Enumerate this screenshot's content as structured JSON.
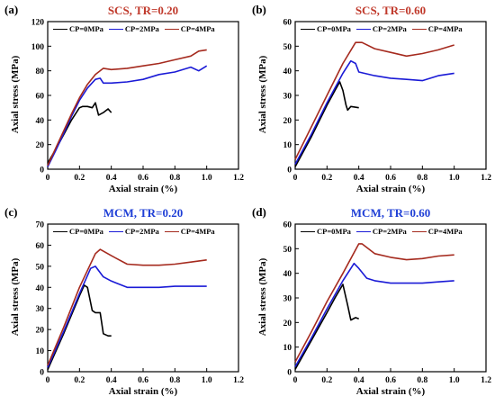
{
  "colors": {
    "cp0": "#000000",
    "cp2": "#1a1ad6",
    "cp4": "#a52a1e",
    "title_scs": "#c0392b",
    "title_mcm": "#1f3fd6"
  },
  "chart_data": [
    {
      "type": "line",
      "panel_letter": "(a)",
      "title": "SCS, TR=0.20",
      "title_color_key": "title_scs",
      "xlabel": "Axial strain (%)",
      "ylabel": "Axial stress (MPa)",
      "xlim": [
        0,
        1.2
      ],
      "ylim": [
        0,
        120
      ],
      "xticks": [
        0.0,
        0.2,
        0.4,
        0.6,
        0.8,
        1.0,
        1.2
      ],
      "xtick_labels": [
        "0",
        "0.2",
        "0.4",
        "0.6",
        "0.8",
        "1.0",
        "1.2"
      ],
      "yticks": [
        0,
        20,
        40,
        60,
        80,
        100,
        120
      ],
      "ytick_labels": [
        "0",
        "20",
        "40",
        "60",
        "80",
        "100",
        "120"
      ],
      "legend_position": "top",
      "series": [
        {
          "name": "CP=0MPa",
          "color_key": "cp0",
          "x": [
            0,
            0.05,
            0.1,
            0.15,
            0.2,
            0.22,
            0.25,
            0.28,
            0.3,
            0.32,
            0.35,
            0.38,
            0.4
          ],
          "y": [
            5,
            16,
            28,
            40,
            50,
            51,
            51,
            50,
            54,
            44,
            46,
            49,
            46
          ]
        },
        {
          "name": "CP=2MPa",
          "color_key": "cp2",
          "x": [
            0,
            0.05,
            0.1,
            0.15,
            0.2,
            0.25,
            0.3,
            0.33,
            0.35,
            0.4,
            0.5,
            0.6,
            0.7,
            0.8,
            0.9,
            0.95,
            1.0
          ],
          "y": [
            2,
            15,
            29,
            43,
            56,
            66,
            73,
            74,
            70,
            70,
            71,
            73,
            77,
            79,
            83,
            80,
            84
          ]
        },
        {
          "name": "CP=4MPa",
          "color_key": "cp4",
          "x": [
            0,
            0.05,
            0.1,
            0.15,
            0.2,
            0.25,
            0.3,
            0.35,
            0.4,
            0.5,
            0.6,
            0.7,
            0.8,
            0.9,
            0.95,
            1.0
          ],
          "y": [
            3,
            17,
            31,
            45,
            58,
            69,
            77,
            82,
            81,
            82,
            84,
            86,
            89,
            92,
            96,
            97
          ]
        }
      ]
    },
    {
      "type": "line",
      "panel_letter": "(b)",
      "title": "SCS, TR=0.60",
      "title_color_key": "title_scs",
      "xlabel": "Axial strain (%)",
      "ylabel": "Axial stress (MPa)",
      "xlim": [
        0,
        1.2
      ],
      "ylim": [
        0,
        60
      ],
      "xticks": [
        0.0,
        0.2,
        0.4,
        0.6,
        0.8,
        1.0,
        1.2
      ],
      "xtick_labels": [
        "0",
        "0.2",
        "0.4",
        "0.6",
        "0.8",
        "1.0",
        "1.2"
      ],
      "yticks": [
        0,
        10,
        20,
        30,
        40,
        50,
        60
      ],
      "ytick_labels": [
        "0",
        "10",
        "20",
        "30",
        "40",
        "50",
        "60"
      ],
      "legend_position": "top",
      "series": [
        {
          "name": "CP=0MPa",
          "color_key": "cp0",
          "x": [
            0,
            0.1,
            0.2,
            0.25,
            0.28,
            0.3,
            0.32,
            0.33,
            0.35,
            0.4
          ],
          "y": [
            1,
            13,
            26,
            32,
            35.5,
            32,
            26,
            24,
            25.5,
            25
          ]
        },
        {
          "name": "CP=2MPa",
          "color_key": "cp2",
          "x": [
            0,
            0.1,
            0.2,
            0.3,
            0.35,
            0.38,
            0.4,
            0.5,
            0.6,
            0.7,
            0.8,
            0.9,
            1.0
          ],
          "y": [
            2,
            14,
            27,
            39,
            44,
            43,
            39.5,
            38,
            37,
            36.5,
            36,
            38,
            39
          ]
        },
        {
          "name": "CP=4MPa",
          "color_key": "cp4",
          "x": [
            0,
            0.1,
            0.2,
            0.3,
            0.38,
            0.42,
            0.5,
            0.6,
            0.7,
            0.8,
            0.9,
            1.0
          ],
          "y": [
            4,
            17,
            30,
            43,
            51.5,
            51.5,
            49,
            47.5,
            46,
            47,
            48.5,
            50.5
          ]
        }
      ]
    },
    {
      "type": "line",
      "panel_letter": "(c)",
      "title": "MCM, TR=0.20",
      "title_color_key": "title_mcm",
      "xlabel": "Axial strain (%)",
      "ylabel": "Axial stress (MPa)",
      "xlim": [
        0,
        1.2
      ],
      "ylim": [
        0,
        70
      ],
      "xticks": [
        0.0,
        0.2,
        0.4,
        0.6,
        0.8,
        1.0,
        1.2
      ],
      "xtick_labels": [
        "0",
        "0.2",
        "0.4",
        "0.6",
        "0.8",
        "1.0",
        "1.2"
      ],
      "yticks": [
        0,
        10,
        20,
        30,
        40,
        50,
        60,
        70
      ],
      "ytick_labels": [
        "0",
        "10",
        "20",
        "30",
        "40",
        "50",
        "60",
        "70"
      ],
      "legend_position": "top",
      "series": [
        {
          "name": "CP=0MPa",
          "color_key": "cp0",
          "x": [
            0,
            0.1,
            0.2,
            0.23,
            0.25,
            0.28,
            0.3,
            0.33,
            0.35,
            0.38,
            0.4
          ],
          "y": [
            1,
            18,
            36,
            41,
            40,
            29,
            28,
            28,
            18,
            17,
            17
          ]
        },
        {
          "name": "CP=2MPa",
          "color_key": "cp2",
          "x": [
            0,
            0.1,
            0.2,
            0.27,
            0.3,
            0.35,
            0.4,
            0.5,
            0.6,
            0.7,
            0.8,
            0.9,
            1.0
          ],
          "y": [
            2,
            19,
            37,
            49,
            50,
            45,
            43,
            40,
            40,
            40,
            40.5,
            40.5,
            40.5
          ]
        },
        {
          "name": "CP=4MPa",
          "color_key": "cp4",
          "x": [
            0,
            0.1,
            0.2,
            0.3,
            0.33,
            0.4,
            0.5,
            0.6,
            0.7,
            0.8,
            0.9,
            1.0
          ],
          "y": [
            3,
            21,
            40,
            56,
            58,
            55,
            51,
            50.5,
            50.5,
            51,
            52,
            53
          ]
        }
      ]
    },
    {
      "type": "line",
      "panel_letter": "(d)",
      "title": "MCM, TR=0.60",
      "title_color_key": "title_mcm",
      "xlabel": "Axial strain (%)",
      "ylabel": "Axial stress (MPa)",
      "xlim": [
        0,
        1.2
      ],
      "ylim": [
        0,
        60
      ],
      "xticks": [
        0.0,
        0.2,
        0.4,
        0.6,
        0.8,
        1.0,
        1.2
      ],
      "xtick_labels": [
        "0",
        "0.2",
        "0.4",
        "0.6",
        "0.8",
        "1.0",
        "1.2"
      ],
      "yticks": [
        0,
        10,
        20,
        30,
        40,
        50,
        60
      ],
      "ytick_labels": [
        "0",
        "10",
        "20",
        "30",
        "40",
        "50",
        "60"
      ],
      "legend_position": "top",
      "series": [
        {
          "name": "CP=0MPa",
          "color_key": "cp0",
          "x": [
            0,
            0.1,
            0.2,
            0.25,
            0.3,
            0.33,
            0.35,
            0.38,
            0.4
          ],
          "y": [
            1,
            12.5,
            24,
            30,
            35.5,
            27,
            21,
            22,
            21.5
          ]
        },
        {
          "name": "CP=2MPa",
          "color_key": "cp2",
          "x": [
            0,
            0.1,
            0.2,
            0.3,
            0.37,
            0.4,
            0.45,
            0.5,
            0.6,
            0.7,
            0.8,
            0.9,
            1.0
          ],
          "y": [
            2,
            13.5,
            25.5,
            37,
            44,
            42,
            38,
            37,
            36,
            36,
            36,
            36.5,
            37
          ]
        },
        {
          "name": "CP=4MPa",
          "color_key": "cp4",
          "x": [
            0,
            0.1,
            0.2,
            0.3,
            0.4,
            0.42,
            0.5,
            0.6,
            0.7,
            0.8,
            0.9,
            1.0
          ],
          "y": [
            4,
            16,
            28.5,
            40,
            52,
            52,
            48,
            46.5,
            45.5,
            46,
            47,
            47.5
          ]
        }
      ]
    }
  ]
}
